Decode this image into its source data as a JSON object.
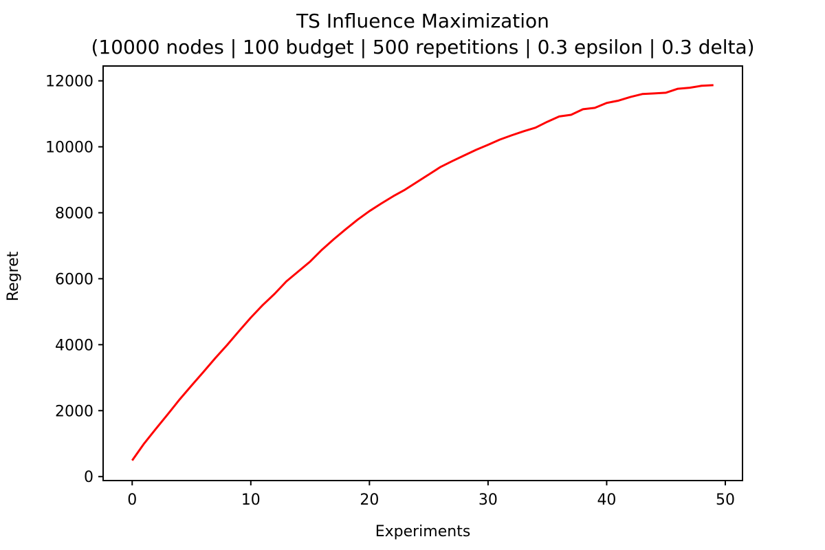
{
  "chart_data": {
    "type": "line",
    "title": "TS Influence Maximization",
    "subtitle": "(10000 nodes | 100 budget | 500 repetitions | 0.3 epsilon | 0.3 delta)",
    "xlabel": "Experiments",
    "ylabel": "Regret",
    "xlim": [
      -2.45,
      51.45
    ],
    "ylim": [
      -120,
      12450
    ],
    "xticks": [
      0,
      10,
      20,
      30,
      40,
      50
    ],
    "yticks": [
      0,
      2000,
      4000,
      6000,
      8000,
      10000,
      12000
    ],
    "grid": false,
    "series": [
      {
        "color": "#ff0000",
        "x": [
          0,
          1,
          2,
          3,
          4,
          5,
          6,
          7,
          8,
          9,
          10,
          11,
          12,
          13,
          14,
          15,
          16,
          17,
          18,
          19,
          20,
          21,
          22,
          23,
          24,
          25,
          26,
          27,
          28,
          29,
          30,
          31,
          32,
          33,
          34,
          35,
          36,
          37,
          38,
          39,
          40,
          41,
          42,
          43,
          44,
          45,
          46,
          47,
          48,
          49
        ],
        "values": [
          490,
          1000,
          1450,
          1890,
          2340,
          2760,
          3170,
          3590,
          3990,
          4410,
          4820,
          5200,
          5540,
          5920,
          6220,
          6520,
          6880,
          7200,
          7500,
          7790,
          8050,
          8280,
          8500,
          8700,
          8930,
          9160,
          9390,
          9570,
          9740,
          9910,
          10060,
          10220,
          10350,
          10470,
          10580,
          10760,
          10920,
          10970,
          11140,
          11180,
          11330,
          11400,
          11510,
          11600,
          11620,
          11640,
          11760,
          11790,
          11850,
          11870
        ]
      }
    ]
  }
}
